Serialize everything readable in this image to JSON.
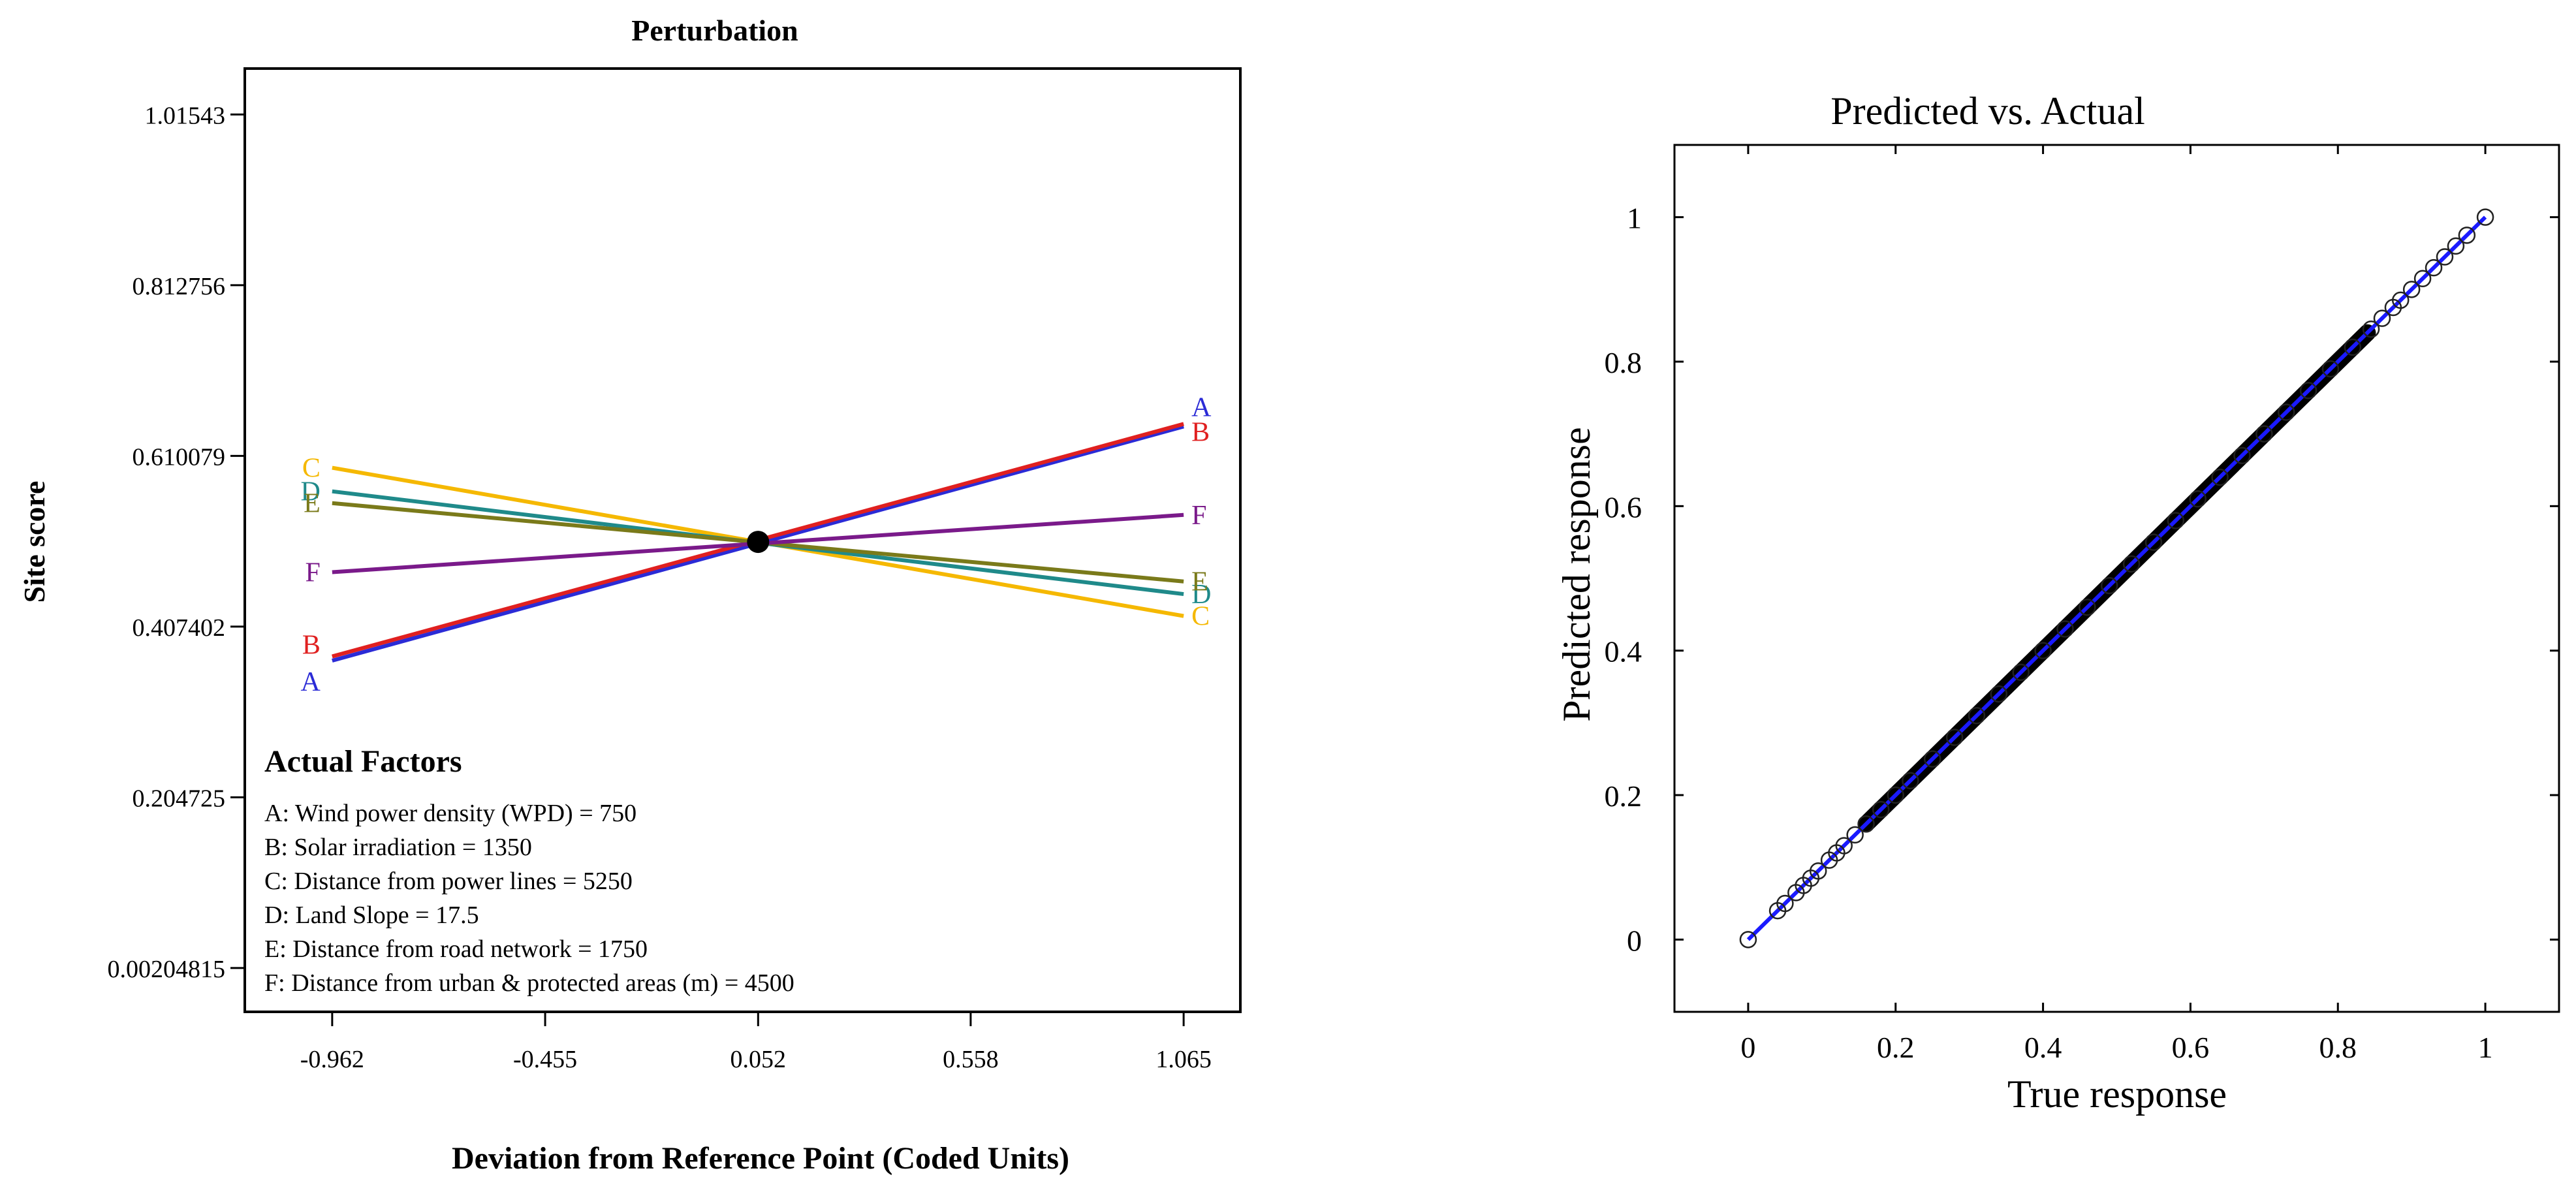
{
  "chart_data": [
    {
      "type": "line",
      "title": "Perturbation",
      "xlabel": "Deviation from Reference Point (Coded Units)",
      "ylabel": "Site score",
      "xlim": [
        -1.17,
        1.2
      ],
      "ylim": [
        -0.05,
        1.07
      ],
      "xticks": [
        -0.962,
        -0.455,
        0.052,
        0.558,
        1.065
      ],
      "xtick_labels": [
        "-0.962",
        "-0.455",
        "0.052",
        "0.558",
        "1.065"
      ],
      "yticks": [
        0.00204815,
        0.204725,
        0.407402,
        0.610079,
        0.812756,
        1.01543
      ],
      "ytick_labels": [
        "0.00204815",
        "0.204725",
        "0.407402",
        "0.610079",
        "0.812756",
        "1.01543"
      ],
      "reference_point": {
        "x": 0.052,
        "y": 0.508
      },
      "series": [
        {
          "name": "A",
          "color": "#2b2bd6",
          "x": [
            -0.962,
            1.065
          ],
          "y": [
            0.367,
            0.645
          ]
        },
        {
          "name": "B",
          "color": "#e02020",
          "x": [
            -0.962,
            1.065
          ],
          "y": [
            0.372,
            0.648
          ]
        },
        {
          "name": "C",
          "color": "#f5b800",
          "x": [
            -0.962,
            1.065
          ],
          "y": [
            0.596,
            0.42
          ]
        },
        {
          "name": "D",
          "color": "#1f8a8a",
          "x": [
            -0.962,
            1.065
          ],
          "y": [
            0.568,
            0.446
          ]
        },
        {
          "name": "E",
          "color": "#7a7a1a",
          "x": [
            -0.962,
            1.065
          ],
          "y": [
            0.554,
            0.461
          ]
        },
        {
          "name": "F",
          "color": "#7a1a8a",
          "x": [
            -0.962,
            1.065
          ],
          "y": [
            0.472,
            0.54
          ]
        }
      ],
      "annotation": {
        "heading": "Actual Factors",
        "lines": [
          "A: Wind power density (WPD) = 750",
          "B: Solar irradiation = 1350",
          "C: Distance from power lines = 5250",
          "D: Land Slope = 17.5",
          "E: Distance from road network  = 1750",
          "F: Distance from urban & protected areas (m) = 4500"
        ]
      }
    },
    {
      "type": "scatter",
      "title": "Predicted vs. Actual",
      "xlabel": "True response",
      "ylabel": "Predicted response",
      "xlim": [
        -0.1,
        1.1
      ],
      "ylim": [
        -0.1,
        1.1
      ],
      "xticks": [
        0,
        0.2,
        0.4,
        0.6,
        0.8,
        1
      ],
      "xtick_labels": [
        "0",
        "0.2",
        "0.4",
        "0.6",
        "0.8",
        "1"
      ],
      "yticks": [
        0,
        0.2,
        0.4,
        0.6,
        0.8,
        1
      ],
      "ytick_labels": [
        "0",
        "0.2",
        "0.4",
        "0.6",
        "0.8",
        "1"
      ],
      "fit_line": {
        "color": "#1a1aff",
        "x": [
          0,
          1
        ],
        "y": [
          0,
          1
        ]
      },
      "points": {
        "x": [
          0.0,
          0.04,
          0.05,
          0.065,
          0.075,
          0.085,
          0.095,
          0.11,
          0.12,
          0.13,
          0.145,
          0.16,
          0.18,
          0.2,
          0.22,
          0.25,
          0.28,
          0.31,
          0.34,
          0.37,
          0.4,
          0.43,
          0.46,
          0.49,
          0.52,
          0.55,
          0.58,
          0.61,
          0.64,
          0.67,
          0.7,
          0.73,
          0.76,
          0.79,
          0.82,
          0.845,
          0.86,
          0.875,
          0.885,
          0.9,
          0.915,
          0.93,
          0.945,
          0.96,
          0.975,
          1.0
        ],
        "y": [
          0.0,
          0.04,
          0.05,
          0.065,
          0.075,
          0.085,
          0.095,
          0.11,
          0.12,
          0.13,
          0.145,
          0.16,
          0.18,
          0.2,
          0.22,
          0.25,
          0.28,
          0.31,
          0.34,
          0.37,
          0.4,
          0.43,
          0.46,
          0.49,
          0.52,
          0.55,
          0.58,
          0.61,
          0.64,
          0.67,
          0.7,
          0.73,
          0.76,
          0.79,
          0.82,
          0.845,
          0.86,
          0.875,
          0.885,
          0.9,
          0.915,
          0.93,
          0.945,
          0.96,
          0.975,
          1.0
        ]
      }
    }
  ]
}
